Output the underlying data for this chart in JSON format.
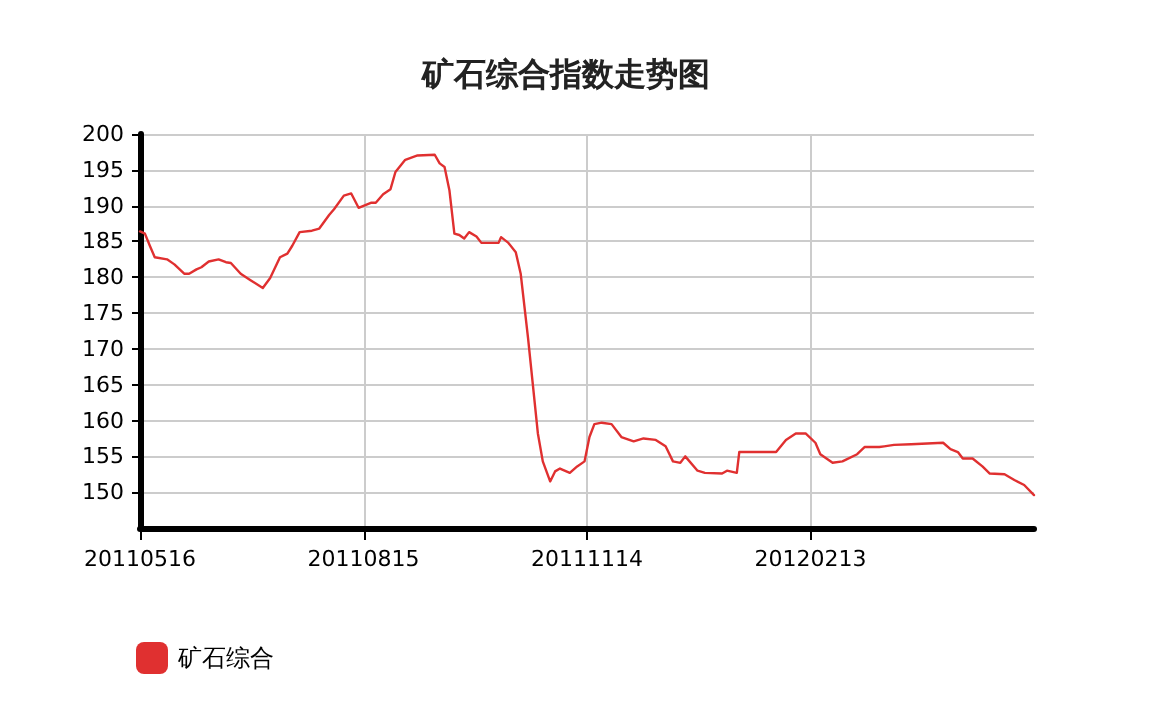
{
  "chart_data": {
    "type": "line",
    "title": "矿石综合指数走势图",
    "x": [
      "2011-05-16",
      "2011-05-18",
      "2011-05-20",
      "2011-05-22",
      "2011-05-27",
      "2011-05-30",
      "2011-06-03",
      "2011-06-05",
      "2011-06-08",
      "2011-06-10",
      "2011-06-13",
      "2011-06-17",
      "2011-06-20",
      "2011-06-22",
      "2011-06-26",
      "2011-06-30",
      "2011-07-05",
      "2011-07-08",
      "2011-07-12",
      "2011-07-15",
      "2011-07-17",
      "2011-07-20",
      "2011-07-25",
      "2011-07-28",
      "2011-08-01",
      "2011-08-03",
      "2011-08-07",
      "2011-08-10",
      "2011-08-13",
      "2011-08-18",
      "2011-08-20",
      "2011-08-23",
      "2011-08-26",
      "2011-08-28",
      "2011-09-01",
      "2011-09-06",
      "2011-09-13",
      "2011-09-15",
      "2011-09-17",
      "2011-09-19",
      "2011-09-21",
      "2011-09-23",
      "2011-09-25",
      "2011-09-27",
      "2011-09-30",
      "2011-10-02",
      "2011-10-09",
      "2011-10-10",
      "2011-10-13",
      "2011-10-16",
      "2011-10-18",
      "2011-10-21",
      "2011-10-25",
      "2011-10-27",
      "2011-10-30",
      "2011-11-01",
      "2011-11-03",
      "2011-11-07",
      "2011-11-10",
      "2011-11-13",
      "2011-11-15",
      "2011-11-17",
      "2011-11-20",
      "2011-11-24",
      "2011-11-28",
      "2011-12-03",
      "2011-12-07",
      "2011-12-12",
      "2011-12-16",
      "2011-12-19",
      "2011-12-22",
      "2011-12-24",
      "2011-12-29",
      "2012-01-01",
      "2012-01-08",
      "2012-01-10",
      "2012-01-14",
      "2012-01-15",
      "2012-01-30",
      "2012-02-03",
      "2012-02-07",
      "2012-02-11",
      "2012-02-15",
      "2012-02-17",
      "2012-02-22",
      "2012-02-26",
      "2012-03-03",
      "2012-03-06",
      "2012-03-12",
      "2012-03-14",
      "2012-03-18",
      "2012-03-25",
      "2012-04-07",
      "2012-04-10",
      "2012-04-13",
      "2012-04-15",
      "2012-04-19",
      "2012-04-23",
      "2012-04-26",
      "2012-05-02",
      "2012-05-06",
      "2012-05-10",
      "2012-05-14"
    ],
    "series": [
      {
        "name": "矿石综合",
        "color": "#e03030",
        "values": [
          186.4,
          186.1,
          184.4,
          182.8,
          182.5,
          181.8,
          180.5,
          180.5,
          181.1,
          181.4,
          182.2,
          182.5,
          182.1,
          182.0,
          180.5,
          179.6,
          178.5,
          179.9,
          182.8,
          183.3,
          184.4,
          186.3,
          186.5,
          186.8,
          188.7,
          189.5,
          191.4,
          191.7,
          189.7,
          190.4,
          190.4,
          191.6,
          192.3,
          194.7,
          196.4,
          197.0,
          197.1,
          195.9,
          195.4,
          192.1,
          186.1,
          185.9,
          185.4,
          186.3,
          185.7,
          184.8,
          184.8,
          185.6,
          184.8,
          183.5,
          180.5,
          171.5,
          158.2,
          154.3,
          151.5,
          152.9,
          153.3,
          152.7,
          153.6,
          154.3,
          157.7,
          159.5,
          159.7,
          159.5,
          157.7,
          157.1,
          157.5,
          157.3,
          156.4,
          154.3,
          154.1,
          155.0,
          153.0,
          152.7,
          152.6,
          153.0,
          152.7,
          155.6,
          155.6,
          157.3,
          158.2,
          158.2,
          156.9,
          155.3,
          154.1,
          154.3,
          155.3,
          156.3,
          156.3,
          156.4,
          156.6,
          156.7,
          156.9,
          156.0,
          155.6,
          154.7,
          154.7,
          153.6,
          152.6,
          152.5,
          151.7,
          151.0,
          149.6
        ]
      }
    ],
    "xlim": [
      "2011-05-16",
      "2012-05-14"
    ],
    "xticks": [
      {
        "value": "2011-05-16",
        "label": "20110516"
      },
      {
        "value": "2011-08-15",
        "label": "20110815"
      },
      {
        "value": "2011-11-14",
        "label": "20111114"
      },
      {
        "value": "2012-02-13",
        "label": "20120213"
      }
    ],
    "ylim": [
      145,
      200
    ],
    "yticks": [
      150,
      155,
      160,
      165,
      170,
      175,
      180,
      185,
      190,
      195,
      200
    ],
    "grid": true,
    "legend": "bottom left",
    "marker": "none",
    "line_style": "solid"
  }
}
